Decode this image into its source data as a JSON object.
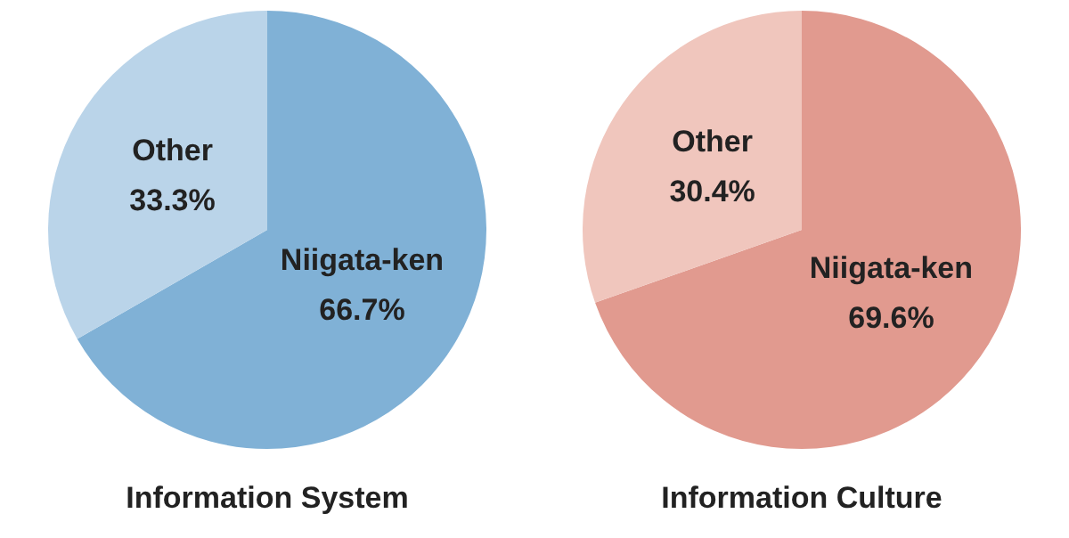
{
  "chart_data": [
    {
      "type": "pie",
      "title": "Information System",
      "categories": [
        "Niigata-ken",
        "Other"
      ],
      "values": [
        66.7,
        33.3
      ],
      "colors": [
        "#80b1d6",
        "#bad4e9"
      ],
      "value_labels": [
        "66.7%",
        "33.3%"
      ],
      "legend": false
    },
    {
      "type": "pie",
      "title": "Information Culture",
      "categories": [
        "Niigata-ken",
        "Other"
      ],
      "values": [
        69.6,
        30.4
      ],
      "colors": [
        "#e19a8f",
        "#f0c6bd"
      ],
      "value_labels": [
        "69.6%",
        "30.4%"
      ],
      "legend": false
    }
  ]
}
